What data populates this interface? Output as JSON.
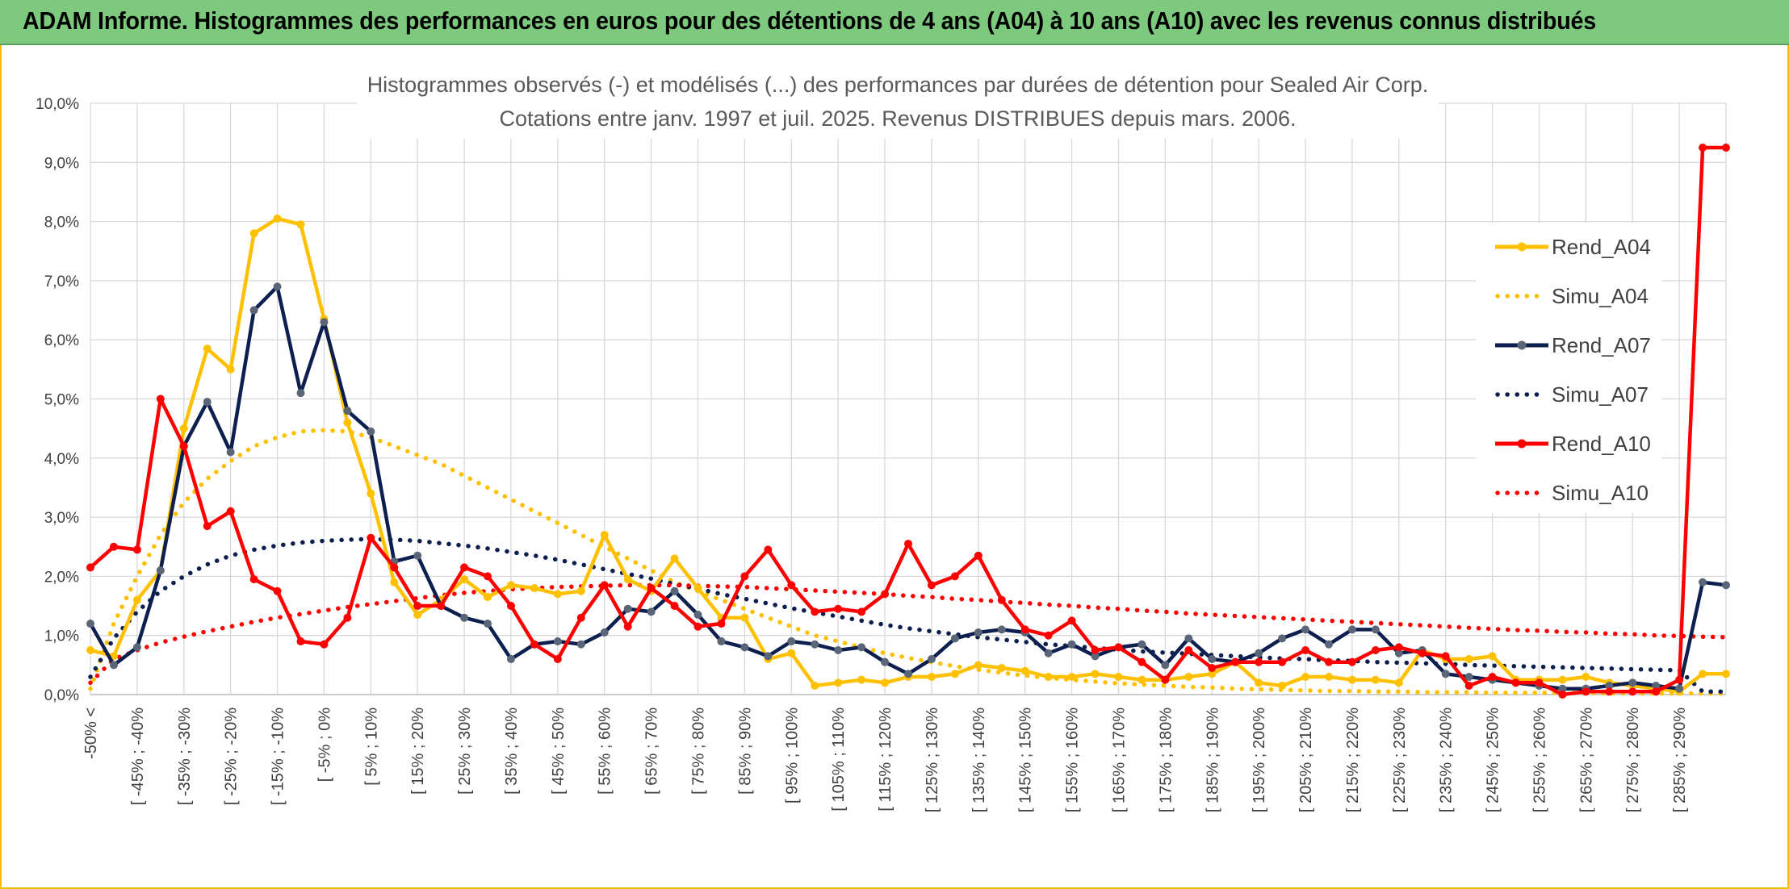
{
  "header": {
    "title": "ADAM Informe. Histogrammes des performances en euros pour des détentions de 4 ans (A04) à 10 ans (A10) avec les revenus connus distribués"
  },
  "colors": {
    "banner": "#7dc97e",
    "frame": "#f0c000",
    "A04": "#ffc000",
    "A07": "#0d1f4f",
    "A10": "#ff0000",
    "grid": "#d9d9d9"
  },
  "chart_data": {
    "type": "line",
    "title_lines": [
      "Histogrammes observés (-) et modélisés (...) des performances par durées de détention pour Sealed Air Corp.",
      "Cotations entre janv. 1997 et juil. 2025. Revenus DISTRIBUES depuis mars. 2006."
    ],
    "ylim": [
      0,
      10
    ],
    "yticks": [
      "0,0%",
      "1,0%",
      "2,0%",
      "3,0%",
      "4,0%",
      "5,0%",
      "6,0%",
      "7,0%",
      "8,0%",
      "9,0%",
      "10,0%"
    ],
    "grid": true,
    "legend_position": "right",
    "xtick_labels": [
      "-50% <",
      "[ -45% ; -40%",
      "[ -35% ; -30%",
      "[ -25% ; -20%",
      "[ -15% ; -10%",
      "[ -5% ; 0%",
      "[ 5% ; 10%",
      "[ 15% ; 20%",
      "[ 25% ; 30%",
      "[ 35% ; 40%",
      "[ 45% ; 50%",
      "[ 55% ; 60%",
      "[ 65% ; 70%",
      "[ 75% ; 80%",
      "[ 85% ; 90%",
      "[ 95% ; 100%",
      "[ 105% ; 110%",
      "[ 115% ; 120%",
      "[ 125% ; 130%",
      "[ 135% ; 140%",
      "[ 145% ; 150%",
      "[ 155% ; 160%",
      "[ 165% ; 170%",
      "[ 175% ; 180%",
      "[ 185% ; 190%",
      "[ 195% ; 200%",
      "[ 205% ; 210%",
      "[ 215% ; 220%",
      "[ 225% ; 230%",
      "[ 235% ; 240%",
      "[ 245% ; 250%",
      "[ 255% ; 260%",
      "[ 265% ; 270%",
      "[ 275% ; 280%",
      "[ 285% ; 290%"
    ],
    "n_categories": 71,
    "series": [
      {
        "name": "Rend_A04",
        "style": "solid",
        "color": "#ffc000",
        "values": [
          0.75,
          0.65,
          1.6,
          2.1,
          4.5,
          5.85,
          5.5,
          7.8,
          8.05,
          7.95,
          6.35,
          4.6,
          3.4,
          1.9,
          1.35,
          1.6,
          1.95,
          1.65,
          1.85,
          1.8,
          1.7,
          1.75,
          2.7,
          1.95,
          1.75,
          2.3,
          1.8,
          1.3,
          1.3,
          0.6,
          0.7,
          0.15,
          0.2,
          0.25,
          0.2,
          0.3,
          0.3,
          0.35,
          0.5,
          0.45,
          0.4,
          0.3,
          0.3,
          0.35,
          0.3,
          0.25,
          0.25,
          0.3,
          0.35,
          0.55,
          0.2,
          0.15,
          0.3,
          0.3,
          0.25,
          0.25,
          0.2,
          0.75,
          0.6,
          0.6,
          0.65,
          0.25,
          0.25,
          0.25,
          0.3,
          0.2,
          0.15,
          0.1,
          0.05,
          0.35,
          0.35
        ]
      },
      {
        "name": "Simu_A04",
        "style": "dotted",
        "color": "#ffc000",
        "values": [
          0.1,
          1.2,
          2.0,
          2.7,
          3.25,
          3.65,
          3.95,
          4.2,
          4.35,
          4.45,
          4.47,
          4.45,
          4.35,
          4.2,
          4.05,
          3.9,
          3.7,
          3.5,
          3.3,
          3.1,
          2.9,
          2.7,
          2.5,
          2.3,
          2.1,
          1.9,
          1.75,
          1.6,
          1.45,
          1.3,
          1.15,
          1.0,
          0.9,
          0.8,
          0.7,
          0.62,
          0.55,
          0.48,
          0.42,
          0.37,
          0.32,
          0.28,
          0.25,
          0.22,
          0.19,
          0.17,
          0.15,
          0.13,
          0.12,
          0.1,
          0.09,
          0.08,
          0.07,
          0.06,
          0.06,
          0.05,
          0.05,
          0.04,
          0.04,
          0.04,
          0.03,
          0.03,
          0.03,
          0.03,
          0.03,
          0.02,
          0.02,
          0.02,
          0.02,
          0.02,
          0.02
        ]
      },
      {
        "name": "Rend_A07",
        "style": "solid",
        "color": "#0d1f4f",
        "values": [
          1.2,
          0.5,
          0.8,
          2.1,
          4.2,
          4.95,
          4.1,
          6.5,
          6.9,
          5.1,
          6.3,
          4.8,
          4.45,
          2.25,
          2.35,
          1.5,
          1.3,
          1.2,
          0.6,
          0.85,
          0.9,
          0.85,
          1.05,
          1.45,
          1.4,
          1.75,
          1.35,
          0.9,
          0.8,
          0.65,
          0.9,
          0.85,
          0.75,
          0.8,
          0.55,
          0.35,
          0.6,
          0.95,
          1.05,
          1.1,
          1.05,
          0.7,
          0.85,
          0.65,
          0.8,
          0.85,
          0.5,
          0.95,
          0.6,
          0.55,
          0.7,
          0.95,
          1.1,
          0.85,
          1.1,
          1.1,
          0.7,
          0.75,
          0.35,
          0.3,
          0.25,
          0.2,
          0.15,
          0.1,
          0.1,
          0.15,
          0.2,
          0.15,
          0.1,
          1.9,
          1.85
        ]
      },
      {
        "name": "Simu_A07",
        "style": "dotted",
        "color": "#0d1f4f",
        "values": [
          0.3,
          0.95,
          1.4,
          1.75,
          2.0,
          2.2,
          2.35,
          2.45,
          2.52,
          2.57,
          2.6,
          2.62,
          2.63,
          2.62,
          2.6,
          2.56,
          2.52,
          2.47,
          2.41,
          2.35,
          2.28,
          2.2,
          2.12,
          2.04,
          1.96,
          1.87,
          1.79,
          1.7,
          1.62,
          1.54,
          1.46,
          1.39,
          1.32,
          1.25,
          1.18,
          1.12,
          1.07,
          1.02,
          0.97,
          0.93,
          0.89,
          0.85,
          0.82,
          0.79,
          0.76,
          0.73,
          0.71,
          0.69,
          0.67,
          0.65,
          0.63,
          0.61,
          0.6,
          0.58,
          0.57,
          0.55,
          0.54,
          0.53,
          0.52,
          0.5,
          0.49,
          0.48,
          0.47,
          0.46,
          0.45,
          0.44,
          0.43,
          0.42,
          0.41,
          0.05,
          0.05
        ]
      },
      {
        "name": "Rend_A10",
        "style": "solid",
        "color": "#ff0000",
        "values": [
          2.15,
          2.5,
          2.45,
          5.0,
          4.2,
          2.85,
          3.1,
          1.95,
          1.75,
          0.9,
          0.85,
          1.3,
          2.65,
          2.15,
          1.5,
          1.5,
          2.15,
          2.0,
          1.5,
          0.85,
          0.6,
          1.3,
          1.85,
          1.15,
          1.8,
          1.5,
          1.15,
          1.2,
          2.0,
          2.45,
          1.85,
          1.4,
          1.45,
          1.4,
          1.7,
          2.55,
          1.85,
          2.0,
          2.35,
          1.6,
          1.1,
          1.0,
          1.25,
          0.75,
          0.8,
          0.55,
          0.25,
          0.75,
          0.45,
          0.55,
          0.55,
          0.55,
          0.75,
          0.55,
          0.55,
          0.75,
          0.8,
          0.7,
          0.65,
          0.15,
          0.3,
          0.2,
          0.2,
          0.0,
          0.05,
          0.05,
          0.05,
          0.05,
          0.25,
          9.25,
          9.25
        ]
      },
      {
        "name": "Simu_A10",
        "style": "dotted",
        "color": "#ff0000",
        "values": [
          0.2,
          0.6,
          0.75,
          0.88,
          0.98,
          1.07,
          1.15,
          1.23,
          1.3,
          1.36,
          1.42,
          1.48,
          1.53,
          1.58,
          1.63,
          1.68,
          1.72,
          1.75,
          1.78,
          1.8,
          1.82,
          1.83,
          1.84,
          1.85,
          1.85,
          1.85,
          1.84,
          1.83,
          1.82,
          1.8,
          1.78,
          1.76,
          1.74,
          1.72,
          1.7,
          1.67,
          1.65,
          1.62,
          1.6,
          1.57,
          1.55,
          1.52,
          1.5,
          1.47,
          1.45,
          1.42,
          1.4,
          1.37,
          1.35,
          1.33,
          1.31,
          1.29,
          1.27,
          1.25,
          1.23,
          1.21,
          1.19,
          1.17,
          1.15,
          1.13,
          1.11,
          1.09,
          1.08,
          1.06,
          1.05,
          1.03,
          1.02,
          1.0,
          0.99,
          0.98,
          0.97
        ]
      }
    ]
  }
}
